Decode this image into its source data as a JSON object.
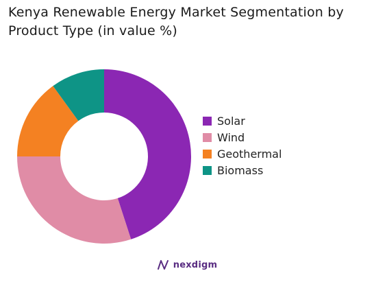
{
  "title_lines": [
    "Kenya Renewable Energy Market Segmentation by",
    "Product Type (in value %)"
  ],
  "chart_data": {
    "type": "pie",
    "donut": true,
    "title": "Kenya Renewable Energy Market Segmentation by Product Type (in value %)",
    "legend_position": "right",
    "series": [
      {
        "name": "Solar",
        "value": 45,
        "color": "#8b27b3"
      },
      {
        "name": "Wind",
        "value": 30,
        "color": "#e08ca6"
      },
      {
        "name": "Geothermal",
        "value": 15,
        "color": "#f48122"
      },
      {
        "name": "Biomass",
        "value": 10,
        "color": "#0e9486"
      }
    ]
  },
  "brand": {
    "name": "nexdigm",
    "icon": "nexdigm-logo-icon",
    "color": "#5a2d82"
  }
}
